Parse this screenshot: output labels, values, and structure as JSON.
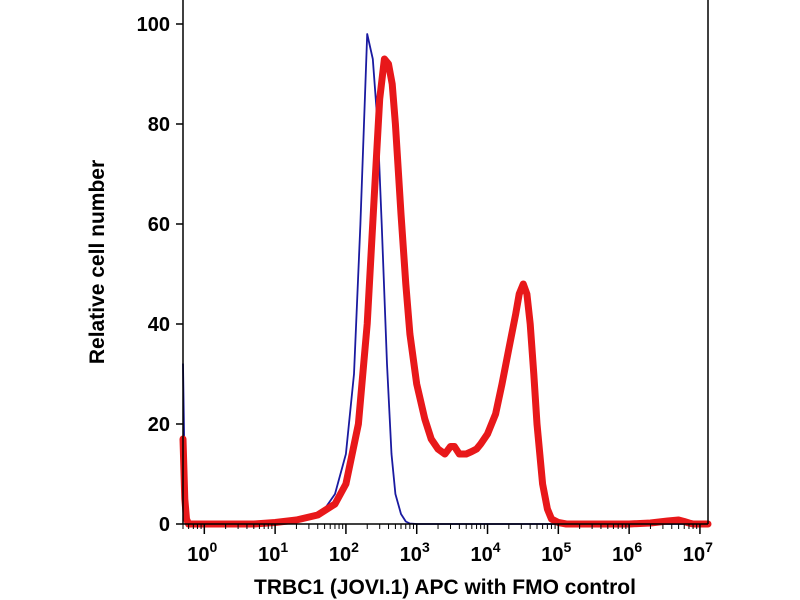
{
  "chart_data": {
    "type": "line",
    "title": "",
    "xlabel": "TRBC1 (JOVI.1) APC with FMO control",
    "ylabel": "Relative cell number",
    "xscale": "log",
    "xlim": [
      0.5,
      13000000
    ],
    "ylim": [
      0,
      100
    ],
    "y_ticks": [
      {
        "value": 0,
        "label": "0"
      },
      {
        "value": 20,
        "label": "20"
      },
      {
        "value": 40,
        "label": "40"
      },
      {
        "value": 60,
        "label": "60"
      },
      {
        "value": 80,
        "label": "80"
      },
      {
        "value": 100,
        "label": "100"
      }
    ],
    "x_ticks": [
      {
        "value": 1,
        "base": "10",
        "exp": "0"
      },
      {
        "value": 10,
        "base": "10",
        "exp": "1"
      },
      {
        "value": 100,
        "base": "10",
        "exp": "2"
      },
      {
        "value": 1000,
        "base": "10",
        "exp": "3"
      },
      {
        "value": 10000,
        "base": "10",
        "exp": "4"
      },
      {
        "value": 100000,
        "base": "10",
        "exp": "5"
      },
      {
        "value": 1000000,
        "base": "10",
        "exp": "6"
      },
      {
        "value": 10000000,
        "base": "10",
        "exp": "7"
      }
    ],
    "grid": false,
    "legend": "none",
    "series": [
      {
        "color": "#1a1aa0",
        "x": [
          0.5,
          0.53,
          0.56,
          0.6,
          0.7,
          1,
          5,
          10,
          20,
          30,
          50,
          70,
          100,
          130,
          160,
          200,
          240,
          280,
          320,
          380,
          440,
          500,
          600,
          700,
          800,
          1000,
          13000000
        ],
        "y": [
          32,
          8,
          0.8,
          0,
          0,
          0,
          0,
          0.2,
          0.6,
          1.2,
          3,
          6,
          14,
          30,
          60,
          98,
          93,
          80,
          60,
          32,
          14,
          6,
          2,
          0.5,
          0.1,
          0,
          0
        ]
      },
      {
        "color": "#e8181a",
        "x": [
          0.5,
          0.53,
          0.56,
          0.6,
          0.7,
          1,
          5,
          10,
          20,
          40,
          70,
          100,
          150,
          200,
          250,
          300,
          350,
          400,
          450,
          500,
          600,
          700,
          800,
          1000,
          1300,
          1600,
          2000,
          2500,
          3000,
          3400,
          4000,
          5000,
          6000,
          7000,
          8000,
          10000,
          13000,
          16000,
          20000,
          25000,
          28000,
          32000,
          36000,
          40000,
          45000,
          50000,
          60000,
          70000,
          80000,
          100000,
          130000,
          200000,
          1000000,
          2000000,
          3500000,
          5000000,
          6000000,
          7000000,
          8000000,
          13000000
        ],
        "y": [
          17,
          5,
          1,
          0,
          0,
          0,
          0,
          0.3,
          0.8,
          1.8,
          4,
          8,
          20,
          40,
          65,
          85,
          93,
          92,
          88,
          80,
          62,
          48,
          38,
          28,
          21,
          17,
          15,
          14,
          15.5,
          15.5,
          14,
          14,
          14.5,
          15,
          16,
          18,
          22,
          28,
          35,
          42,
          46,
          48,
          46,
          40,
          30,
          20,
          8,
          3,
          1,
          0.3,
          0,
          0,
          0,
          0.2,
          0.6,
          0.8,
          0.5,
          0.2,
          0,
          0
        ]
      }
    ]
  }
}
